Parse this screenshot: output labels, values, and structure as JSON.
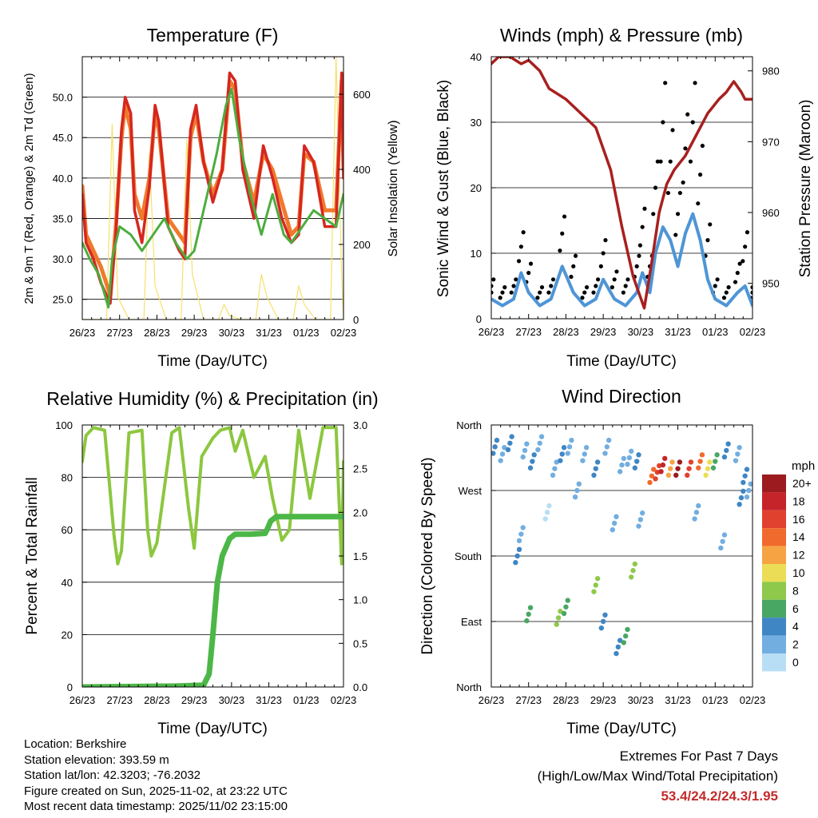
{
  "time_ticks": [
    "26/23",
    "27/23",
    "28/23",
    "29/23",
    "30/23",
    "31/23",
    "01/23",
    "02/23"
  ],
  "colors": {
    "temp2m": "#d62620",
    "temp9m": "#f0792c",
    "dewpoint": "#4cad3f",
    "solar": "#f5e16a",
    "wind": "#4e95d6",
    "gust": "#000000",
    "pressure": "#a8201f",
    "rh": "#8cc73f",
    "precip": "#4cb747"
  },
  "chart_data": [
    {
      "type": "line",
      "id": "temperature",
      "title": "Temperature (F)",
      "xlabel": "Time (Day/UTC)",
      "ylabel": "2m & 9m T (Red, Orange) & 2m Td (Green)",
      "y2label": "Solar Insolation (Yellow)",
      "ylim": [
        22.5,
        55
      ],
      "y2lim": [
        0,
        700
      ],
      "yticks": [
        "25.0",
        "30.0",
        "35.0",
        "40.0",
        "45.0",
        "50.0"
      ],
      "y2ticks": [
        "0",
        "200",
        "400",
        "600"
      ],
      "series": [
        {
          "name": "2m T",
          "x": [
            0,
            0.1,
            0.3,
            0.5,
            0.75,
            0.9,
            1.05,
            1.15,
            1.3,
            1.4,
            1.6,
            1.8,
            1.95,
            2.05,
            2.3,
            2.6,
            2.75,
            2.9,
            3.05,
            3.25,
            3.5,
            3.75,
            3.95,
            4.1,
            4.3,
            4.6,
            4.85,
            5.1,
            5.35,
            5.6,
            5.8,
            5.95,
            6.2,
            6.5,
            6.8,
            6.95,
            7.0
          ],
          "values": [
            38,
            32,
            30,
            27,
            24.5,
            33,
            46,
            50,
            48,
            36,
            32,
            39,
            49,
            47,
            34,
            31,
            30,
            46,
            49,
            42,
            37,
            41,
            53,
            52,
            41,
            35,
            44,
            40,
            35,
            32,
            33,
            44,
            42,
            34,
            34,
            53,
            40
          ]
        },
        {
          "name": "9m T",
          "x": [
            0,
            0.1,
            0.3,
            0.5,
            0.75,
            0.9,
            1.05,
            1.15,
            1.3,
            1.4,
            1.6,
            1.8,
            1.95,
            2.05,
            2.3,
            2.6,
            2.75,
            2.9,
            3.05,
            3.25,
            3.5,
            3.75,
            3.95,
            4.1,
            4.3,
            4.6,
            4.85,
            5.1,
            5.35,
            5.6,
            5.8,
            5.95,
            6.2,
            6.5,
            6.8,
            6.95,
            7.0
          ],
          "values": [
            39,
            33,
            31,
            29,
            25.5,
            34,
            45,
            49,
            46,
            38,
            35,
            40,
            48,
            46,
            35,
            33,
            32,
            45,
            48,
            42,
            38,
            41,
            52,
            51,
            42,
            37,
            43,
            41,
            37,
            33,
            34,
            43,
            42,
            36,
            36,
            52,
            41
          ]
        },
        {
          "name": "2m Td",
          "x": [
            0,
            0.2,
            0.45,
            0.7,
            0.8,
            1.0,
            1.3,
            1.6,
            1.9,
            2.2,
            2.5,
            2.8,
            3.0,
            3.3,
            3.6,
            3.85,
            4.0,
            4.2,
            4.5,
            4.8,
            5.1,
            5.4,
            5.6,
            5.9,
            6.2,
            6.5,
            6.8,
            7.0
          ],
          "values": [
            32,
            30,
            28,
            24,
            30,
            34,
            33,
            31,
            33,
            35,
            32,
            30,
            31,
            37,
            43,
            49,
            51,
            45,
            38,
            33,
            38,
            33,
            32,
            34,
            36,
            35,
            34,
            38
          ]
        },
        {
          "name": "Solar",
          "axis": "y2",
          "x": [
            0,
            0.65,
            0.8,
            0.95,
            1.25,
            1.65,
            1.8,
            1.95,
            2.25,
            2.65,
            2.8,
            2.95,
            3.25,
            3.65,
            3.8,
            3.95,
            4.25,
            4.65,
            4.8,
            4.95,
            5.25,
            5.65,
            5.8,
            5.95,
            6.25,
            6.65,
            6.8,
            6.95,
            7.0
          ],
          "values": [
            0,
            0,
            520,
            60,
            0,
            0,
            440,
            90,
            0,
            0,
            480,
            120,
            0,
            0,
            40,
            10,
            0,
            0,
            120,
            60,
            0,
            0,
            90,
            40,
            0,
            0,
            700,
            120,
            0
          ]
        }
      ]
    },
    {
      "type": "line",
      "id": "winds",
      "title": "Winds (mph) & Pressure (mb)",
      "xlabel": "Time (Day/UTC)",
      "ylabel": "Sonic Wind & Gust (Blue, Black)",
      "y2label": "Station Pressure (Maroon)",
      "ylim": [
        0,
        40
      ],
      "y2lim": [
        945,
        982
      ],
      "yticks": [
        "0",
        "10",
        "20",
        "30",
        "40"
      ],
      "y2ticks": [
        "950",
        "960",
        "970",
        "980"
      ],
      "series": [
        {
          "name": "Wind",
          "x": [
            0,
            0.3,
            0.6,
            0.8,
            1.0,
            1.3,
            1.6,
            1.9,
            2.2,
            2.5,
            2.8,
            3.0,
            3.3,
            3.6,
            3.9,
            4.05,
            4.25,
            4.4,
            4.6,
            4.8,
            5.0,
            5.2,
            5.4,
            5.6,
            5.8,
            6.0,
            6.3,
            6.6,
            6.8,
            7.0
          ],
          "values": [
            3,
            2,
            3,
            7,
            4,
            2,
            3,
            8,
            4,
            2,
            3,
            6,
            3,
            2,
            4,
            7,
            4,
            10,
            14,
            12,
            8,
            13,
            16,
            12,
            6,
            3,
            2,
            4,
            5,
            2
          ]
        },
        {
          "name": "Gust",
          "x": [
            0,
            0.3,
            0.6,
            0.8,
            1.0,
            1.3,
            1.6,
            1.9,
            2.2,
            2.5,
            2.8,
            3.0,
            3.3,
            3.6,
            3.9,
            4.05,
            4.25,
            4.4,
            4.6,
            4.8,
            5.0,
            5.2,
            5.4,
            5.6,
            5.8,
            6.0,
            6.3,
            6.6,
            6.8,
            7.0
          ],
          "values": [
            5,
            4,
            5,
            11,
            7,
            4,
            5,
            13,
            8,
            4,
            5,
            10,
            6,
            5,
            8,
            14,
            8,
            20,
            30,
            24,
            16,
            26,
            30,
            22,
            12,
            5,
            4,
            7,
            11,
            4
          ]
        },
        {
          "name": "Pressure",
          "axis": "y2",
          "x": [
            0,
            0.2,
            0.5,
            0.8,
            1.0,
            1.3,
            1.55,
            2.0,
            2.4,
            2.8,
            3.2,
            3.5,
            3.8,
            4.1,
            4.3,
            4.5,
            4.7,
            4.9,
            5.2,
            5.5,
            5.8,
            6.1,
            6.3,
            6.5,
            6.7,
            6.8,
            7.0
          ],
          "values": [
            981,
            982,
            982,
            981,
            981.5,
            980,
            977.5,
            976,
            974,
            972,
            966,
            958,
            951,
            946.5,
            953,
            960,
            964,
            966,
            968,
            971,
            974,
            976,
            977,
            978.5,
            977,
            976,
            976
          ]
        }
      ]
    },
    {
      "type": "line",
      "id": "humidity",
      "title": "Relative Humidity (%) & Precipitation (in)",
      "xlabel": "Time (Day/UTC)",
      "ylabel": "Percent & Total Rainfall",
      "ylim": [
        0,
        100
      ],
      "y2lim": [
        0,
        3.0
      ],
      "yticks": [
        "0",
        "20",
        "40",
        "60",
        "80",
        "100"
      ],
      "y2ticks": [
        "0.0",
        "0.5",
        "1.0",
        "1.5",
        "2.0",
        "2.5",
        "3.0"
      ],
      "series": [
        {
          "name": "RH",
          "x": [
            0,
            0.1,
            0.3,
            0.6,
            0.85,
            0.95,
            1.05,
            1.25,
            1.6,
            1.75,
            1.85,
            2.0,
            2.4,
            2.6,
            2.85,
            3.0,
            3.2,
            3.5,
            3.7,
            3.95,
            4.1,
            4.3,
            4.6,
            4.9,
            5.1,
            5.35,
            5.55,
            5.8,
            6.1,
            6.45,
            6.8,
            6.95,
            7.0
          ],
          "values": [
            86,
            96,
            99,
            98,
            58,
            47,
            52,
            97,
            98,
            60,
            50,
            55,
            97,
            99,
            68,
            53,
            88,
            95,
            98,
            99,
            90,
            98,
            80,
            88,
            72,
            56,
            60,
            98,
            72,
            99,
            99,
            47,
            86
          ]
        },
        {
          "name": "Precipitation",
          "axis": "y2",
          "x": [
            0,
            2.5,
            3.25,
            3.4,
            3.5,
            3.62,
            3.75,
            3.85,
            3.95,
            4.1,
            4.5,
            4.9,
            4.95,
            5.05,
            5.2,
            6.0,
            7.0
          ],
          "values": [
            0,
            0.01,
            0.02,
            0.15,
            0.6,
            1.2,
            1.5,
            1.6,
            1.7,
            1.75,
            1.75,
            1.76,
            1.8,
            1.9,
            1.95,
            1.95,
            1.95
          ]
        }
      ]
    },
    {
      "type": "scatter",
      "id": "wind-direction",
      "title": "Wind Direction",
      "xlabel": "Time (Day/UTC)",
      "ylabel": "Direction (Colored By Speed)",
      "ylim": [
        0,
        360
      ],
      "yticks": [
        "North",
        "East",
        "South",
        "West",
        "North"
      ],
      "legend": {
        "title": "mph",
        "labels": [
          "20+",
          "18",
          "16",
          "14",
          "12",
          "10",
          "8",
          "6",
          "4",
          "2",
          "0"
        ],
        "colors": [
          "#9b1b1e",
          "#c4242a",
          "#e0412e",
          "#f06a2d",
          "#f6a344",
          "#ebdd55",
          "#8ec94c",
          "#48a763",
          "#3f86c4",
          "#72aee0",
          "#b8def5"
        ]
      },
      "series": [
        {
          "name": "Direction",
          "x": [
            0.1,
            0.3,
            0.5,
            0.9,
            1.1,
            1.3,
            1.7,
            1.9,
            2.1,
            2.5,
            2.8,
            3.1,
            3.5,
            3.7,
            3.9,
            4.3,
            4.45,
            4.6,
            4.8,
            5.0,
            5.3,
            5.6,
            5.8,
            6.0,
            6.3,
            6.6,
            6.8,
            0.7,
            1.0,
            1.8,
            2.0,
            2.8,
            3.0,
            3.4,
            3.6,
            3.8,
            0.8,
            1.5,
            2.3,
            3.3,
            4.0,
            5.5,
            6.2,
            6.7,
            6.9
          ],
          "values": [
            330,
            320,
            335,
            325,
            310,
            335,
            300,
            320,
            330,
            320,
            300,
            330,
            305,
            315,
            310,
            290,
            295,
            305,
            300,
            300,
            300,
            310,
            300,
            310,
            325,
            320,
            290,
            180,
            100,
            95,
            110,
            140,
            90,
            55,
            70,
            160,
            210,
            240,
            270,
            225,
            230,
            240,
            200,
            260,
            270
          ],
          "speeds": [
            3,
            2,
            4,
            2,
            3,
            1,
            2,
            3,
            2,
            1,
            3,
            2,
            2,
            1,
            3,
            14,
            16,
            18,
            12,
            20,
            16,
            14,
            10,
            6,
            3,
            2,
            4,
            4,
            6,
            7,
            5,
            8,
            4,
            3,
            6,
            7,
            1,
            0,
            1,
            1,
            2,
            1,
            1,
            3,
            2
          ]
        }
      ]
    }
  ],
  "info": {
    "location": "Location: Berkshire",
    "elevation": "Station elevation: 393.59 m",
    "latlon": "Station lat/lon: 42.3203; -76.2032",
    "created": "Figure created on Sun, 2025-11-02, at 23:22 UTC",
    "recent": "Most recent data timestamp: 2025/11/02 23:15:00"
  },
  "extremes": {
    "title": "Extremes For Past 7 Days",
    "subtitle": "(High/Low/Max Wind/Total Precipitation)",
    "values": "53.4/24.2/24.3/1.95"
  }
}
